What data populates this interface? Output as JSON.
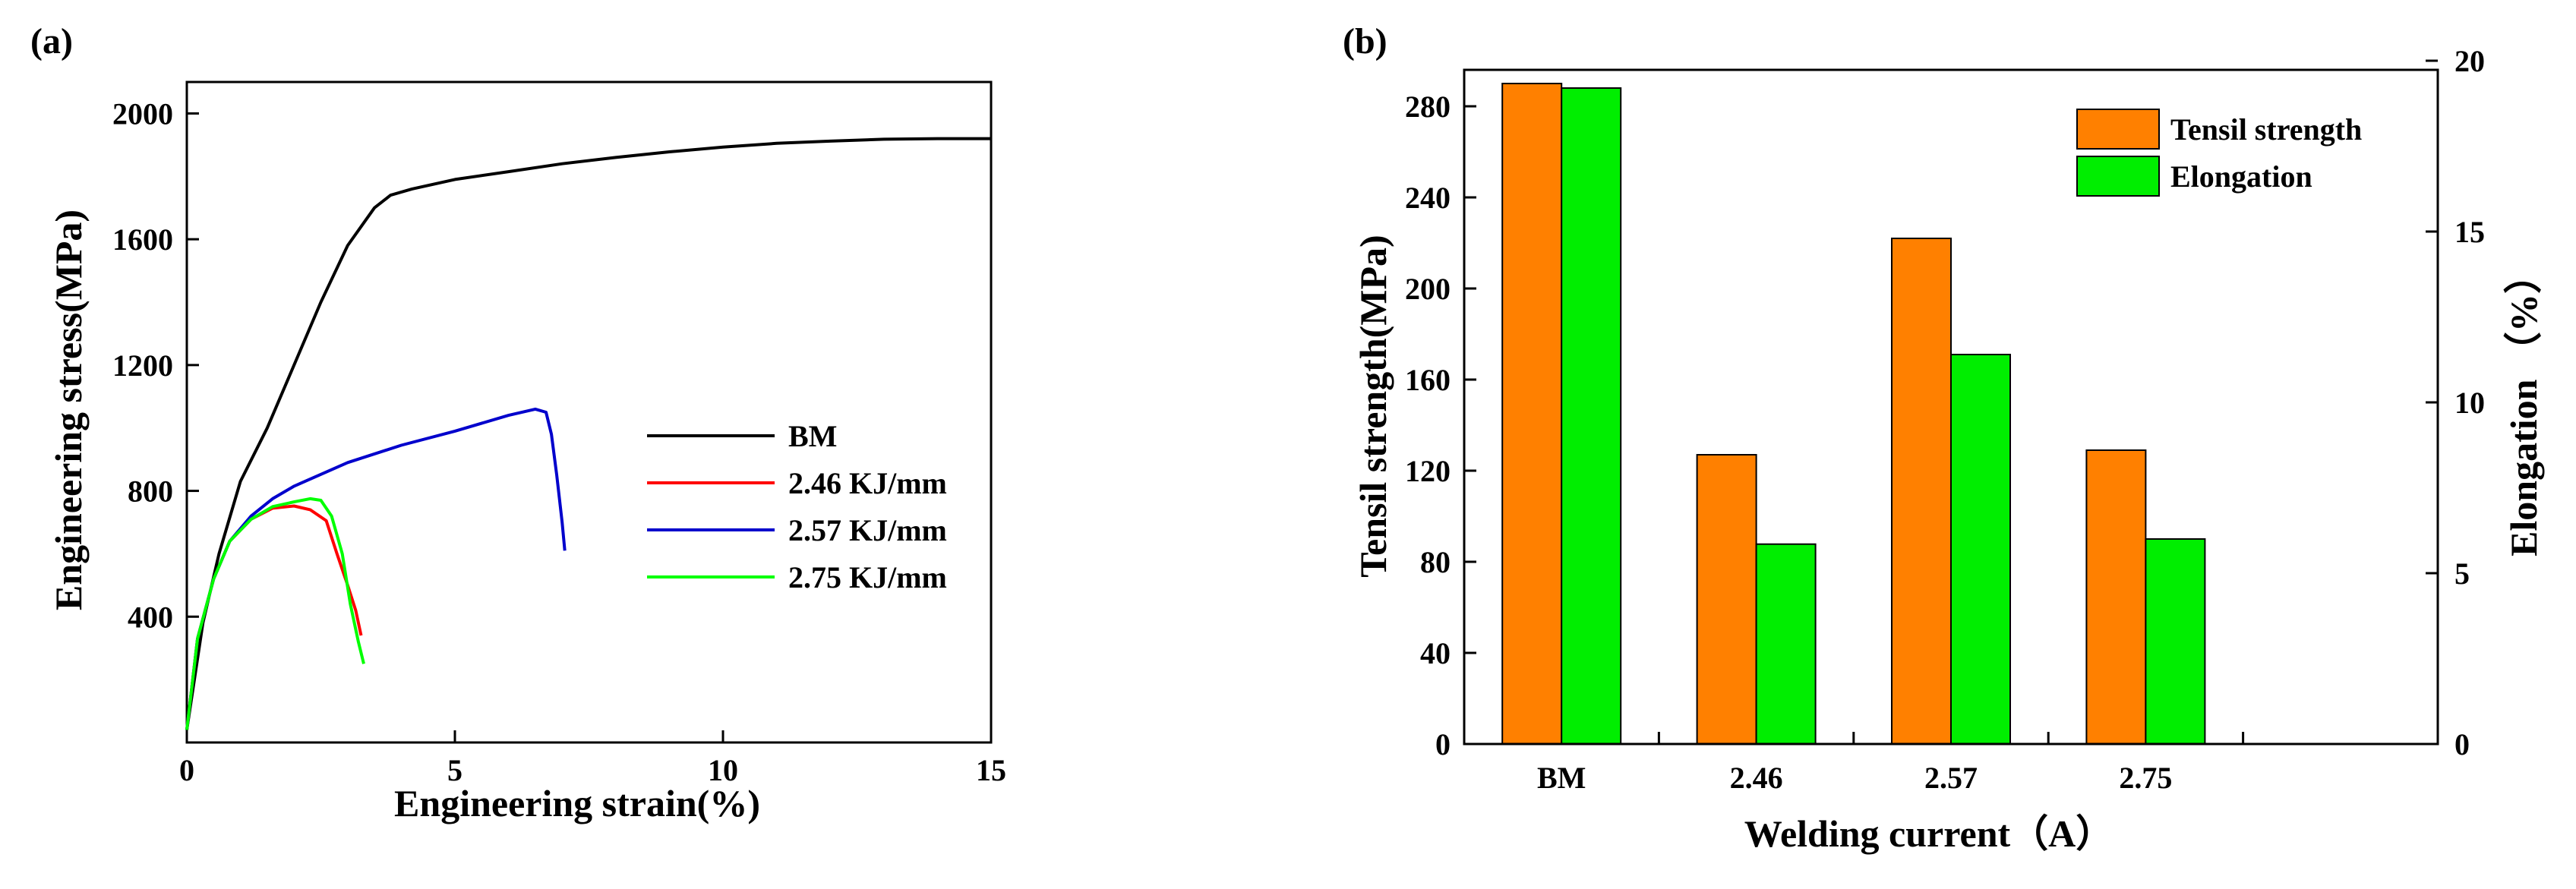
{
  "chart_data": [
    {
      "panel": "(a)",
      "type": "line",
      "title": "",
      "xlabel": "Engineering strain(%)",
      "ylabel": "Engineering stress(MPa)",
      "xlim": [
        0,
        15
      ],
      "ylim": [
        0,
        2100
      ],
      "xticks": [
        0,
        5,
        10,
        15
      ],
      "yticks": [
        400,
        800,
        1200,
        1600,
        2000
      ],
      "legend_position": "center-right",
      "series": [
        {
          "name": "BM",
          "color": "#000000",
          "x": [
            0,
            0.3,
            0.6,
            1.0,
            1.5,
            2.0,
            2.5,
            3.0,
            3.5,
            3.8,
            4.2,
            5.0,
            6.0,
            7.0,
            8.0,
            9.0,
            10.0,
            11.0,
            12.0,
            13.0,
            14.0,
            15.0
          ],
          "y": [
            40,
            380,
            600,
            830,
            1000,
            1200,
            1400,
            1580,
            1700,
            1740,
            1760,
            1790,
            1815,
            1840,
            1860,
            1878,
            1893,
            1905,
            1912,
            1918,
            1920,
            1920
          ]
        },
        {
          "name": "2.46 KJ/mm",
          "color": "#ff0000",
          "x": [
            0,
            0.2,
            0.5,
            0.8,
            1.2,
            1.6,
            2.0,
            2.3,
            2.6,
            2.8,
            3.0,
            3.15,
            3.25
          ],
          "y": [
            40,
            330,
            520,
            640,
            710,
            745,
            752,
            740,
            705,
            600,
            500,
            420,
            340
          ]
        },
        {
          "name": "2.57 KJ/mm",
          "color": "#0000cc",
          "x": [
            0,
            0.2,
            0.5,
            0.8,
            1.2,
            1.6,
            2.0,
            3.0,
            4.0,
            5.0,
            6.0,
            6.5,
            6.7,
            6.8,
            6.9,
            7.0,
            7.05
          ],
          "y": [
            40,
            330,
            520,
            640,
            720,
            775,
            815,
            890,
            945,
            990,
            1040,
            1060,
            1050,
            980,
            850,
            700,
            610
          ]
        },
        {
          "name": "2.75 KJ/mm",
          "color": "#00ff00",
          "x": [
            0,
            0.2,
            0.5,
            0.8,
            1.2,
            1.6,
            2.0,
            2.3,
            2.5,
            2.7,
            2.9,
            3.05,
            3.2,
            3.3
          ],
          "y": [
            40,
            330,
            520,
            640,
            710,
            750,
            765,
            775,
            770,
            720,
            600,
            440,
            320,
            250
          ]
        }
      ]
    },
    {
      "panel": "(b)",
      "type": "bar",
      "title": "",
      "xlabel": "Welding current（A）",
      "ylabel": "Tensil strength(MPa)",
      "y2label": "Elongation （%）",
      "categories": [
        "BM",
        "2.46",
        "2.57",
        "2.75"
      ],
      "ylim": [
        0,
        296
      ],
      "y2lim": [
        0,
        19.733
      ],
      "yticks": [
        0,
        40,
        80,
        120,
        160,
        200,
        240,
        280
      ],
      "y2ticks": [
        0,
        5,
        10,
        15,
        20
      ],
      "legend_position": "top-right",
      "series": [
        {
          "name": "Tensil strength",
          "axis": "left",
          "color": "#ff8000",
          "values": [
            290,
            127,
            222,
            129
          ]
        },
        {
          "name": "Elongation",
          "axis": "right",
          "color": "#00ee00",
          "values": [
            19.2,
            5.85,
            11.4,
            6.0
          ]
        }
      ]
    }
  ]
}
